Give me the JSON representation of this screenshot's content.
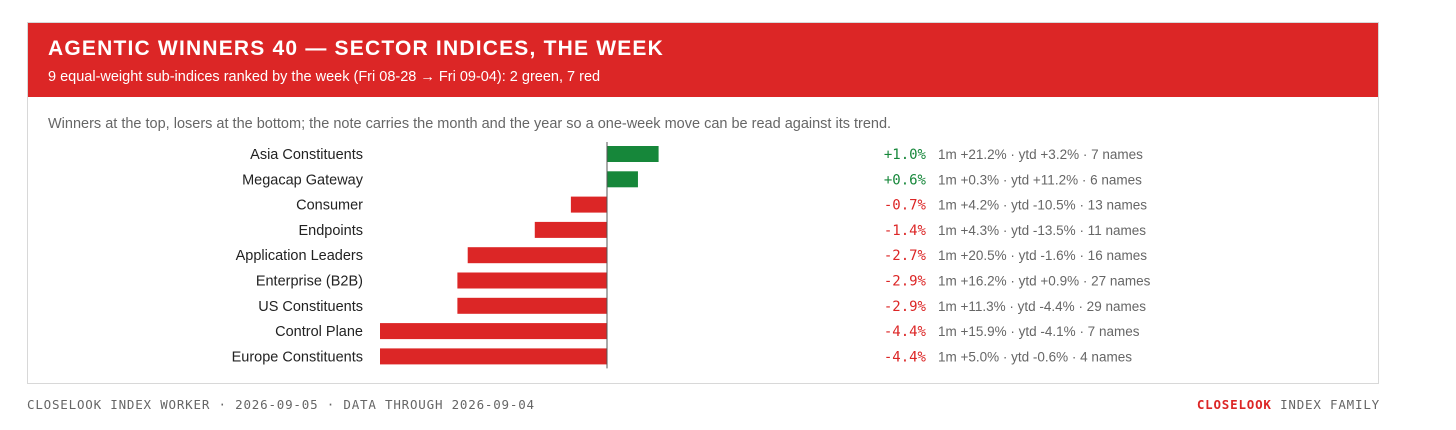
{
  "banner": {
    "title": "AGENTIC WINNERS 40 — SECTOR INDICES, THE WEEK",
    "subtitle": "9 equal-weight sub-indices ranked by the week (Fri 08-28 → Fri 09-04): 2 green, 7 red",
    "color": "#dc2626"
  },
  "intro": "Winners at the top, losers at the bottom; the note carries the month and the year so a one-week move can be read against its trend.",
  "chart_data": {
    "type": "bar",
    "orientation": "horizontal",
    "unit": "%",
    "xlim": [
      -4.4,
      1.0
    ],
    "colors": {
      "positive": "#16873a",
      "negative": "#dc2626"
    },
    "categories": [
      "Asia Constituents",
      "Megacap Gateway",
      "Consumer",
      "Endpoints",
      "Application Leaders",
      "Enterprise (B2B)",
      "US Constituents",
      "Control Plane",
      "Europe Constituents"
    ],
    "values": [
      1.0,
      0.6,
      -0.7,
      -1.4,
      -2.7,
      -2.9,
      -2.9,
      -4.4,
      -4.4
    ],
    "value_labels": [
      "+1.0%",
      "+0.6%",
      "-0.7%",
      "-1.4%",
      "-2.7%",
      "-2.9%",
      "-2.9%",
      "-4.4%",
      "-4.4%"
    ],
    "notes": [
      "1m +21.2% · ytd +3.2% · 7 names",
      "1m +0.3% · ytd +11.2% · 6 names",
      "1m +4.2% · ytd -10.5% · 13 names",
      "1m +4.3% · ytd -13.5% · 11 names",
      "1m +20.5% · ytd -1.6% · 16 names",
      "1m +16.2% · ytd +0.9% · 27 names",
      "1m +11.3% · ytd -4.4% · 29 names",
      "1m +15.9% · ytd -4.1% · 7 names",
      "1m +5.0% · ytd -0.6% · 4 names"
    ]
  },
  "footer": {
    "left": "CLOSELOOK INDEX WORKER · 2026-09-05 · DATA THROUGH 2026-09-04",
    "brand": "CLOSELOOK",
    "right": "INDEX FAMILY"
  }
}
